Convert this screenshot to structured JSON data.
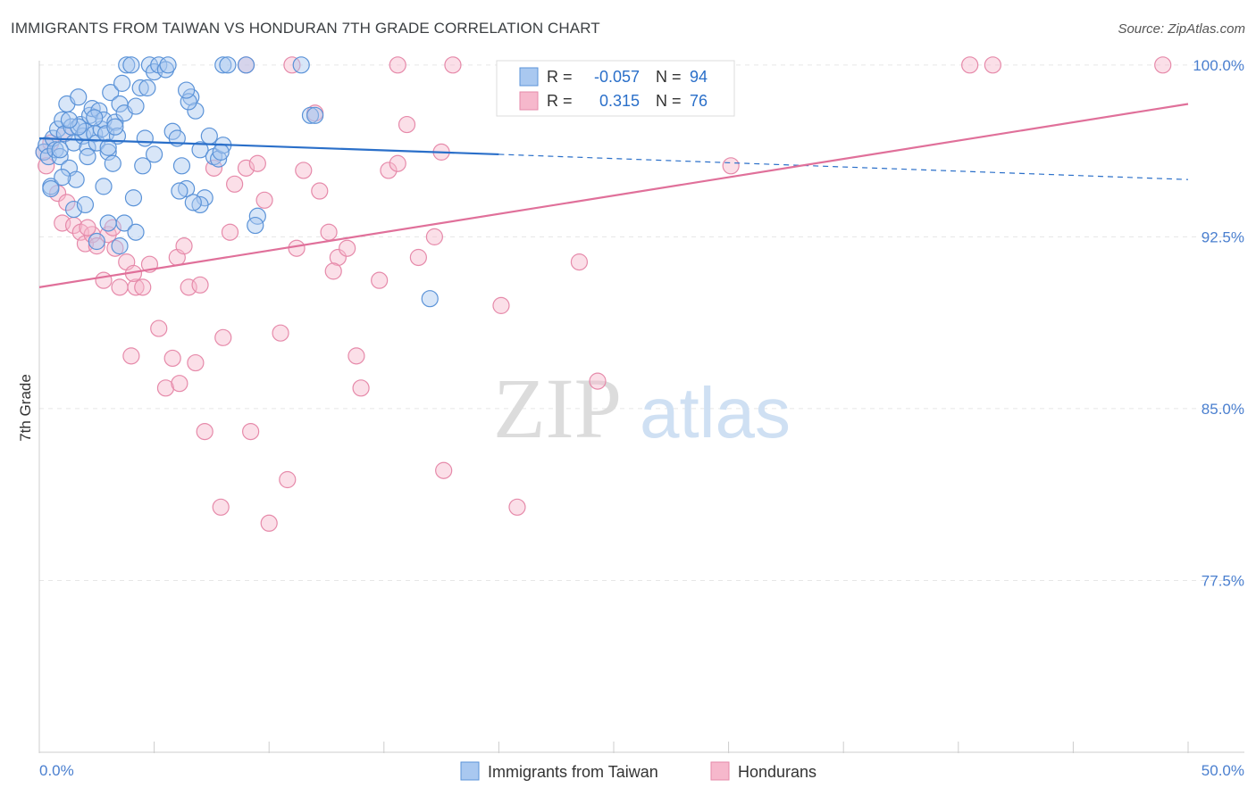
{
  "title": "IMMIGRANTS FROM TAIWAN VS HONDURAN 7TH GRADE CORRELATION CHART",
  "source": "Source: ZipAtlas.com",
  "watermark": {
    "zip": "ZIP",
    "atlas": "atlas"
  },
  "colors": {
    "taiwan_fill": "#a9c8f0",
    "taiwan_stroke": "#5b93d8",
    "taiwan_line": "#2a6fc9",
    "honduran_fill": "#f6b8cc",
    "honduran_stroke": "#e68aaa",
    "honduran_line": "#e0709a",
    "value_text": "#2a6fc9",
    "grid": "#e6e6e6"
  },
  "legend": {
    "rows": [
      {
        "r_label": "R =",
        "r_value": "-0.057",
        "n_label": "N =",
        "n_value": "94"
      },
      {
        "r_label": "R =",
        "r_value": "0.315",
        "n_label": "N =",
        "n_value": "76"
      }
    ]
  },
  "chart_data": {
    "type": "scatter",
    "title": "IMMIGRANTS FROM TAIWAN VS HONDURAN 7TH GRADE CORRELATION CHART",
    "xlabel": "",
    "ylabel": "7th Grade",
    "xlim": [
      0,
      50
    ],
    "ylim": [
      70,
      100.5
    ],
    "x_tick_labels": [
      "0.0%",
      "50.0%"
    ],
    "y_ticks": [
      77.5,
      85.0,
      92.5,
      100.0
    ],
    "y_tick_labels": [
      "77.5%",
      "85.0%",
      "92.5%",
      "100.0%"
    ],
    "series": [
      {
        "name": "Immigrants from Taiwan",
        "r": -0.057,
        "n": 94,
        "trend": {
          "x0": 0,
          "y0": 96.8,
          "x1": 20,
          "y1": 96.1,
          "dash_to_x": 50,
          "dash_to_y": 95.0
        },
        "points": [
          [
            0.2,
            96.2
          ],
          [
            0.3,
            96.5
          ],
          [
            0.4,
            96.0
          ],
          [
            0.5,
            94.7
          ],
          [
            0.6,
            96.8
          ],
          [
            0.7,
            96.3
          ],
          [
            0.8,
            97.2
          ],
          [
            0.9,
            96.0
          ],
          [
            1.0,
            97.6
          ],
          [
            1.1,
            97.0
          ],
          [
            1.2,
            98.3
          ],
          [
            1.3,
            95.5
          ],
          [
            1.4,
            97.3
          ],
          [
            1.5,
            96.6
          ],
          [
            1.6,
            95.0
          ],
          [
            1.7,
            98.6
          ],
          [
            1.8,
            97.4
          ],
          [
            1.9,
            96.9
          ],
          [
            2.0,
            97.1
          ],
          [
            2.1,
            96.4
          ],
          [
            2.2,
            97.8
          ],
          [
            2.3,
            98.1
          ],
          [
            2.4,
            97.0
          ],
          [
            2.5,
            96.6
          ],
          [
            2.6,
            98.0
          ],
          [
            2.7,
            97.2
          ],
          [
            2.8,
            97.6
          ],
          [
            2.9,
            97.0
          ],
          [
            3.0,
            96.2
          ],
          [
            3.1,
            98.8
          ],
          [
            3.2,
            95.7
          ],
          [
            3.3,
            97.5
          ],
          [
            3.4,
            96.9
          ],
          [
            3.5,
            98.3
          ],
          [
            3.6,
            99.2
          ],
          [
            3.7,
            97.9
          ],
          [
            3.8,
            100.0
          ],
          [
            4.0,
            100.0
          ],
          [
            4.2,
            98.2
          ],
          [
            4.4,
            99.0
          ],
          [
            4.6,
            96.8
          ],
          [
            4.8,
            100.0
          ],
          [
            5.0,
            99.7
          ],
          [
            5.2,
            100.0
          ],
          [
            5.5,
            99.8
          ],
          [
            5.8,
            97.1
          ],
          [
            6.0,
            96.8
          ],
          [
            6.2,
            95.6
          ],
          [
            6.4,
            94.6
          ],
          [
            6.6,
            98.6
          ],
          [
            6.8,
            98.0
          ],
          [
            7.0,
            96.3
          ],
          [
            7.2,
            94.2
          ],
          [
            7.4,
            96.9
          ],
          [
            7.6,
            96.0
          ],
          [
            7.8,
            95.9
          ],
          [
            8.0,
            100.0
          ],
          [
            8.2,
            100.0
          ],
          [
            9.0,
            100.0
          ],
          [
            9.5,
            93.4
          ],
          [
            9.4,
            93.0
          ],
          [
            11.8,
            97.8
          ],
          [
            12.0,
            97.8
          ],
          [
            11.4,
            100.0
          ],
          [
            0.5,
            94.6
          ],
          [
            1.0,
            95.1
          ],
          [
            1.5,
            93.7
          ],
          [
            2.0,
            93.9
          ],
          [
            2.5,
            92.3
          ],
          [
            3.0,
            93.1
          ],
          [
            3.5,
            92.1
          ],
          [
            3.7,
            93.1
          ],
          [
            4.2,
            92.7
          ],
          [
            4.5,
            95.6
          ],
          [
            5.6,
            100.0
          ],
          [
            5.0,
            96.1
          ],
          [
            2.8,
            94.7
          ],
          [
            3.3,
            97.3
          ],
          [
            4.7,
            99.0
          ],
          [
            6.5,
            98.4
          ],
          [
            7.0,
            93.9
          ],
          [
            6.7,
            94.0
          ],
          [
            6.1,
            94.5
          ],
          [
            1.7,
            97.3
          ],
          [
            2.1,
            96.0
          ],
          [
            0.9,
            96.3
          ],
          [
            1.3,
            97.6
          ],
          [
            2.4,
            97.7
          ],
          [
            4.1,
            94.2
          ],
          [
            8.0,
            96.5
          ],
          [
            7.9,
            96.2
          ],
          [
            6.4,
            98.9
          ],
          [
            17.0,
            89.8
          ],
          [
            3.0,
            96.4
          ]
        ]
      },
      {
        "name": "Hondurans",
        "r": 0.315,
        "n": 76,
        "trend": {
          "x0": 0,
          "y0": 90.3,
          "x1": 50,
          "y1": 98.3
        },
        "points": [
          [
            0.2,
            96.2
          ],
          [
            0.3,
            95.6
          ],
          [
            0.5,
            96.6
          ],
          [
            0.8,
            94.4
          ],
          [
            1.0,
            93.1
          ],
          [
            1.2,
            94.0
          ],
          [
            1.5,
            93.0
          ],
          [
            1.8,
            92.7
          ],
          [
            2.0,
            92.2
          ],
          [
            2.3,
            92.6
          ],
          [
            2.5,
            92.1
          ],
          [
            2.8,
            90.6
          ],
          [
            3.0,
            92.6
          ],
          [
            3.2,
            92.9
          ],
          [
            3.5,
            90.3
          ],
          [
            3.8,
            91.4
          ],
          [
            4.0,
            87.3
          ],
          [
            4.2,
            90.3
          ],
          [
            4.5,
            90.3
          ],
          [
            4.8,
            91.3
          ],
          [
            5.2,
            88.5
          ],
          [
            5.5,
            85.9
          ],
          [
            5.8,
            87.2
          ],
          [
            6.0,
            91.6
          ],
          [
            6.3,
            92.1
          ],
          [
            6.5,
            90.3
          ],
          [
            6.8,
            87.0
          ],
          [
            7.0,
            90.4
          ],
          [
            7.2,
            84.0
          ],
          [
            7.6,
            95.5
          ],
          [
            8.0,
            88.1
          ],
          [
            8.3,
            92.7
          ],
          [
            8.5,
            94.8
          ],
          [
            9.0,
            95.5
          ],
          [
            9.2,
            84.0
          ],
          [
            9.5,
            95.7
          ],
          [
            9.8,
            94.1
          ],
          [
            10.5,
            88.3
          ],
          [
            10.8,
            81.9
          ],
          [
            11.2,
            92.0
          ],
          [
            11.5,
            95.4
          ],
          [
            12.0,
            97.9
          ],
          [
            12.2,
            94.5
          ],
          [
            12.6,
            92.7
          ],
          [
            13.0,
            91.6
          ],
          [
            13.4,
            92.0
          ],
          [
            13.8,
            87.3
          ],
          [
            14.0,
            85.9
          ],
          [
            14.8,
            90.6
          ],
          [
            15.2,
            95.4
          ],
          [
            15.6,
            95.7
          ],
          [
            16.0,
            97.4
          ],
          [
            16.5,
            91.6
          ],
          [
            17.2,
            92.5
          ],
          [
            17.6,
            82.3
          ],
          [
            18.0,
            100.0
          ],
          [
            20.1,
            89.5
          ],
          [
            20.8,
            80.7
          ],
          [
            23.5,
            91.4
          ],
          [
            24.3,
            86.2
          ],
          [
            30.1,
            95.6
          ],
          [
            40.5,
            100.0
          ],
          [
            41.5,
            100.0
          ],
          [
            48.9,
            100.0
          ],
          [
            11.0,
            100.0
          ],
          [
            10.0,
            80.0
          ],
          [
            7.9,
            80.7
          ],
          [
            2.1,
            92.9
          ],
          [
            1.1,
            97.0
          ],
          [
            4.1,
            90.9
          ],
          [
            9.0,
            100.0
          ],
          [
            15.6,
            100.0
          ],
          [
            3.3,
            92.0
          ],
          [
            6.1,
            86.1
          ],
          [
            12.8,
            91.0
          ],
          [
            17.5,
            96.2
          ]
        ]
      }
    ]
  },
  "bottom_legend": [
    {
      "label": "Immigrants from Taiwan"
    },
    {
      "label": "Hondurans"
    }
  ]
}
